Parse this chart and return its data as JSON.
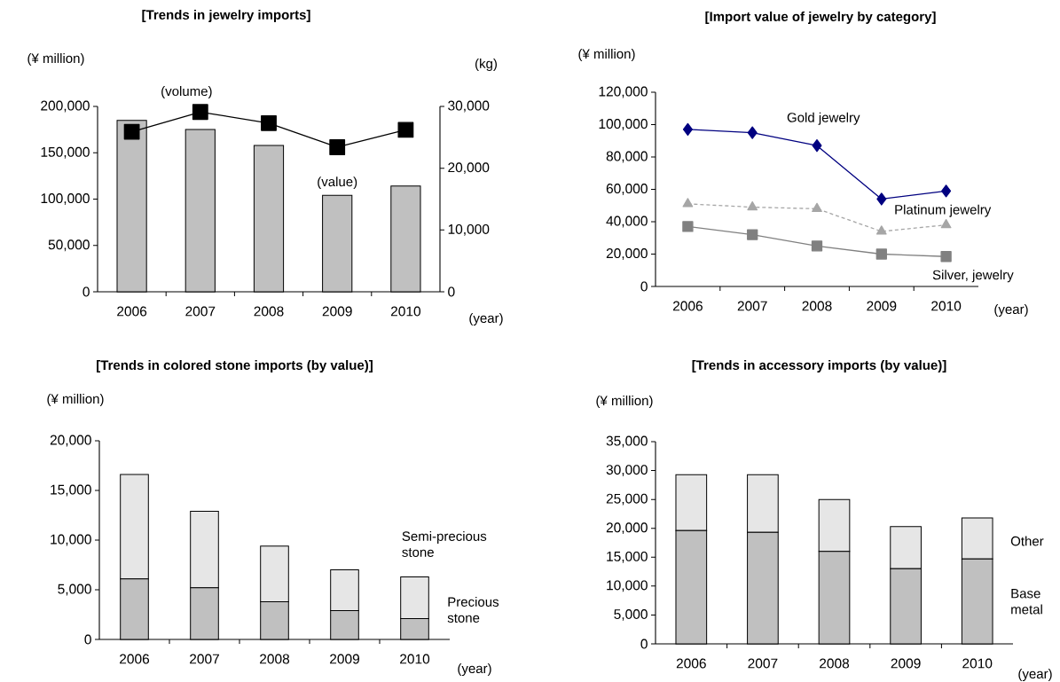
{
  "chart_data": [
    {
      "type": "bar",
      "title": "[Trends in jewelry imports]",
      "ylabel": "(¥ million)",
      "y2label": "(kg)",
      "xlabel": "(year)",
      "categories": [
        "2006",
        "2007",
        "2008",
        "2009",
        "2010"
      ],
      "series": [
        {
          "name": "(value)",
          "type": "bar",
          "color": "#c0c0c0",
          "values": [
            185000,
            175000,
            158000,
            104000,
            114000
          ]
        },
        {
          "name": "(volume)",
          "type": "line",
          "axis": "y2",
          "color": "#000000",
          "marker": "square",
          "line_style": "solid",
          "values": [
            25900,
            29100,
            27300,
            23400,
            26200
          ]
        }
      ],
      "ylim": [
        0,
        200000
      ],
      "yticks": [
        0,
        {
          "value": 50000,
          "label": "50,000"
        },
        {
          "value": 100000,
          "label": "100,000"
        },
        {
          "value": 150000,
          "label": "150,000"
        },
        {
          "value": 200000,
          "label": "200,000"
        }
      ],
      "y2lim": [
        0,
        30000
      ],
      "y2ticks": [
        0,
        {
          "value": 10000,
          "label": "10,000"
        },
        {
          "value": 20000,
          "label": "20,000"
        },
        {
          "value": 30000,
          "label": "30,000"
        }
      ]
    },
    {
      "type": "line",
      "title": "[Import value of jewelry by category]",
      "ylabel": "(¥ million)",
      "xlabel": "(year)",
      "categories": [
        "2006",
        "2007",
        "2008",
        "2009",
        "2010"
      ],
      "series": [
        {
          "name": "Gold jewelry",
          "color": "#000080",
          "marker": "diamond",
          "line_style": "solid",
          "values": [
            97000,
            95000,
            87000,
            54000,
            59000
          ]
        },
        {
          "name": "Platinum jewelry",
          "color": "#a6a6a6",
          "marker": "triangle",
          "line_style": "dashed",
          "values": [
            51000,
            49000,
            48000,
            34000,
            38000
          ]
        },
        {
          "name": "Silver, jewelry",
          "color": "#808080",
          "marker": "square",
          "line_style": "solid",
          "values": [
            37000,
            32000,
            25000,
            20000,
            18500
          ]
        }
      ],
      "ylim": [
        0,
        120000
      ],
      "yticks": [
        0,
        {
          "value": 20000,
          "label": "20,000"
        },
        {
          "value": 40000,
          "label": "40,000"
        },
        {
          "value": 60000,
          "label": "60,000"
        },
        {
          "value": 80000,
          "label": "80,000"
        },
        {
          "value": 100000,
          "label": "100,000"
        },
        {
          "value": 120000,
          "label": "120,000"
        }
      ]
    },
    {
      "type": "bar",
      "stacked": true,
      "title": "[Trends in colored stone imports (by value)]",
      "ylabel": "(¥ million)",
      "xlabel": "(year)",
      "categories": [
        "2006",
        "2007",
        "2008",
        "2009",
        "2010"
      ],
      "series": [
        {
          "name": "Precious stone",
          "color": "#c0c0c0",
          "values": [
            6100,
            5200,
            3800,
            2900,
            2100
          ]
        },
        {
          "name": "Semi-precious stone",
          "color": "#e6e6e6",
          "values": [
            10500,
            7700,
            5600,
            4100,
            4200
          ]
        }
      ],
      "ylim": [
        0,
        20000
      ],
      "yticks": [
        0,
        {
          "value": 5000,
          "label": "5,000"
        },
        {
          "value": 10000,
          "label": "10,000"
        },
        {
          "value": 15000,
          "label": "15,000"
        },
        {
          "value": 20000,
          "label": "20,000"
        }
      ]
    },
    {
      "type": "bar",
      "stacked": true,
      "title": "[Trends in accessory imports (by value)]",
      "ylabel": "(¥ million)",
      "xlabel": "(year)",
      "categories": [
        "2006",
        "2007",
        "2008",
        "2009",
        "2010"
      ],
      "series": [
        {
          "name": "Base metal",
          "color": "#c0c0c0",
          "values": [
            19600,
            19300,
            16000,
            13000,
            14700
          ]
        },
        {
          "name": "Other",
          "color": "#e6e6e6",
          "values": [
            9700,
            10000,
            9000,
            7300,
            7100
          ]
        }
      ],
      "ylim": [
        0,
        35000
      ],
      "yticks": [
        0,
        {
          "value": 5000,
          "label": "5,000"
        },
        {
          "value": 10000,
          "label": "10,000"
        },
        {
          "value": 15000,
          "label": "15,000"
        },
        {
          "value": 20000,
          "label": "20,000"
        },
        {
          "value": 25000,
          "label": "25,000"
        },
        {
          "value": 30000,
          "label": "30,000"
        },
        {
          "value": 35000,
          "label": "35,000"
        }
      ]
    }
  ]
}
